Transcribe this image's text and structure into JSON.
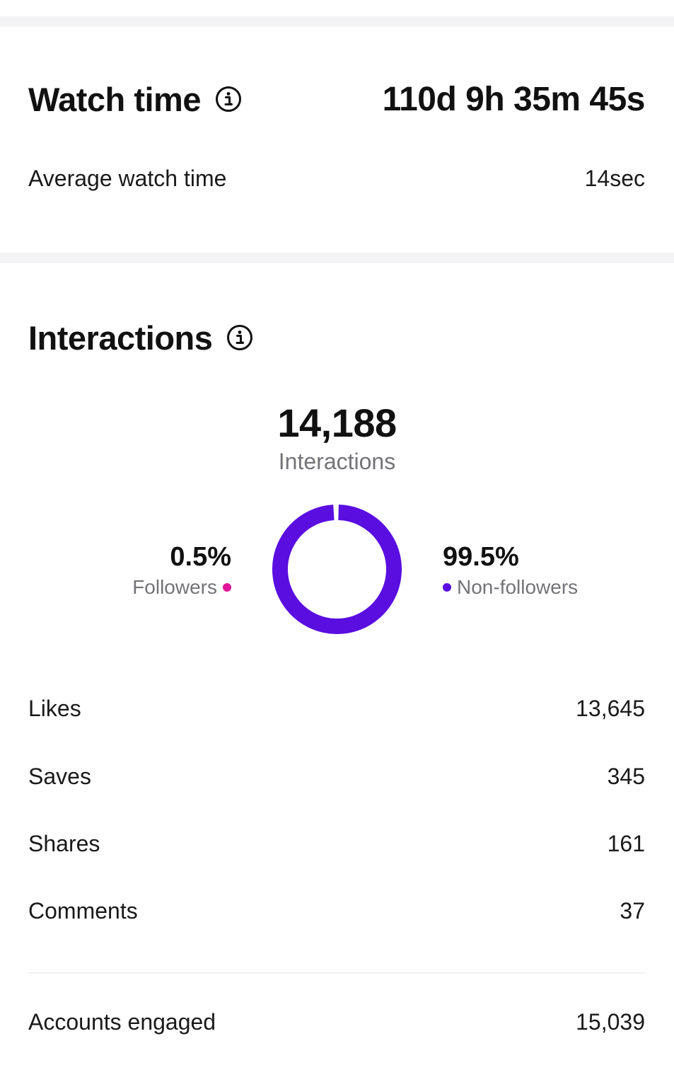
{
  "watch_time": {
    "title": "Watch time",
    "value": "110d 9h 35m 45s",
    "average_label": "Average watch time",
    "average_value": "14sec"
  },
  "interactions": {
    "title": "Interactions",
    "total": "14,188",
    "total_label": "Interactions",
    "followers_pct": "0.5%",
    "followers_label": "Followers",
    "non_followers_pct": "99.5%",
    "non_followers_label": "Non-followers",
    "followers_share": 0.005,
    "non_followers_share": 0.995,
    "colors": {
      "followers": "#e1159a",
      "non_followers": "#5a0ee0"
    },
    "rows": [
      {
        "label": "Likes",
        "value": "13,645"
      },
      {
        "label": "Saves",
        "value": "345"
      },
      {
        "label": "Shares",
        "value": "161"
      },
      {
        "label": "Comments",
        "value": "37"
      }
    ],
    "accounts_engaged_label": "Accounts engaged",
    "accounts_engaged_value": "15,039"
  },
  "icons": {
    "info": "info-icon"
  }
}
